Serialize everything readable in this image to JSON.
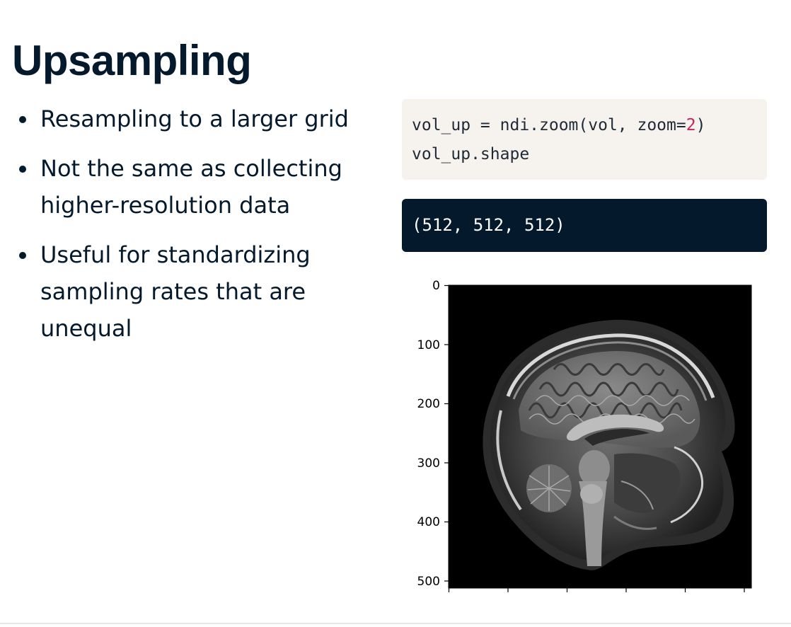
{
  "slide": {
    "title": "Upsampling",
    "bullets": [
      "Resampling to a larger grid",
      "Not the same as collecting higher-resolution data",
      "Useful for standardizing sampling rates that are unequal"
    ]
  },
  "code": {
    "line1_prefix": "vol_up = ndi.zoom(vol, zoom=",
    "line1_number": "2",
    "line1_suffix": ")",
    "line2": "vol_up.shape"
  },
  "output": {
    "text": "(512, 512, 512)"
  },
  "figure": {
    "y_ticks": [
      "0",
      "100",
      "200",
      "300",
      "400",
      "500"
    ],
    "image_description_icon": "mri-sagittal-brain-slice"
  },
  "colors": {
    "text": "#05192d",
    "code_bg": "#f6f3ee",
    "output_bg": "#05192d",
    "number": "#c6235c"
  }
}
